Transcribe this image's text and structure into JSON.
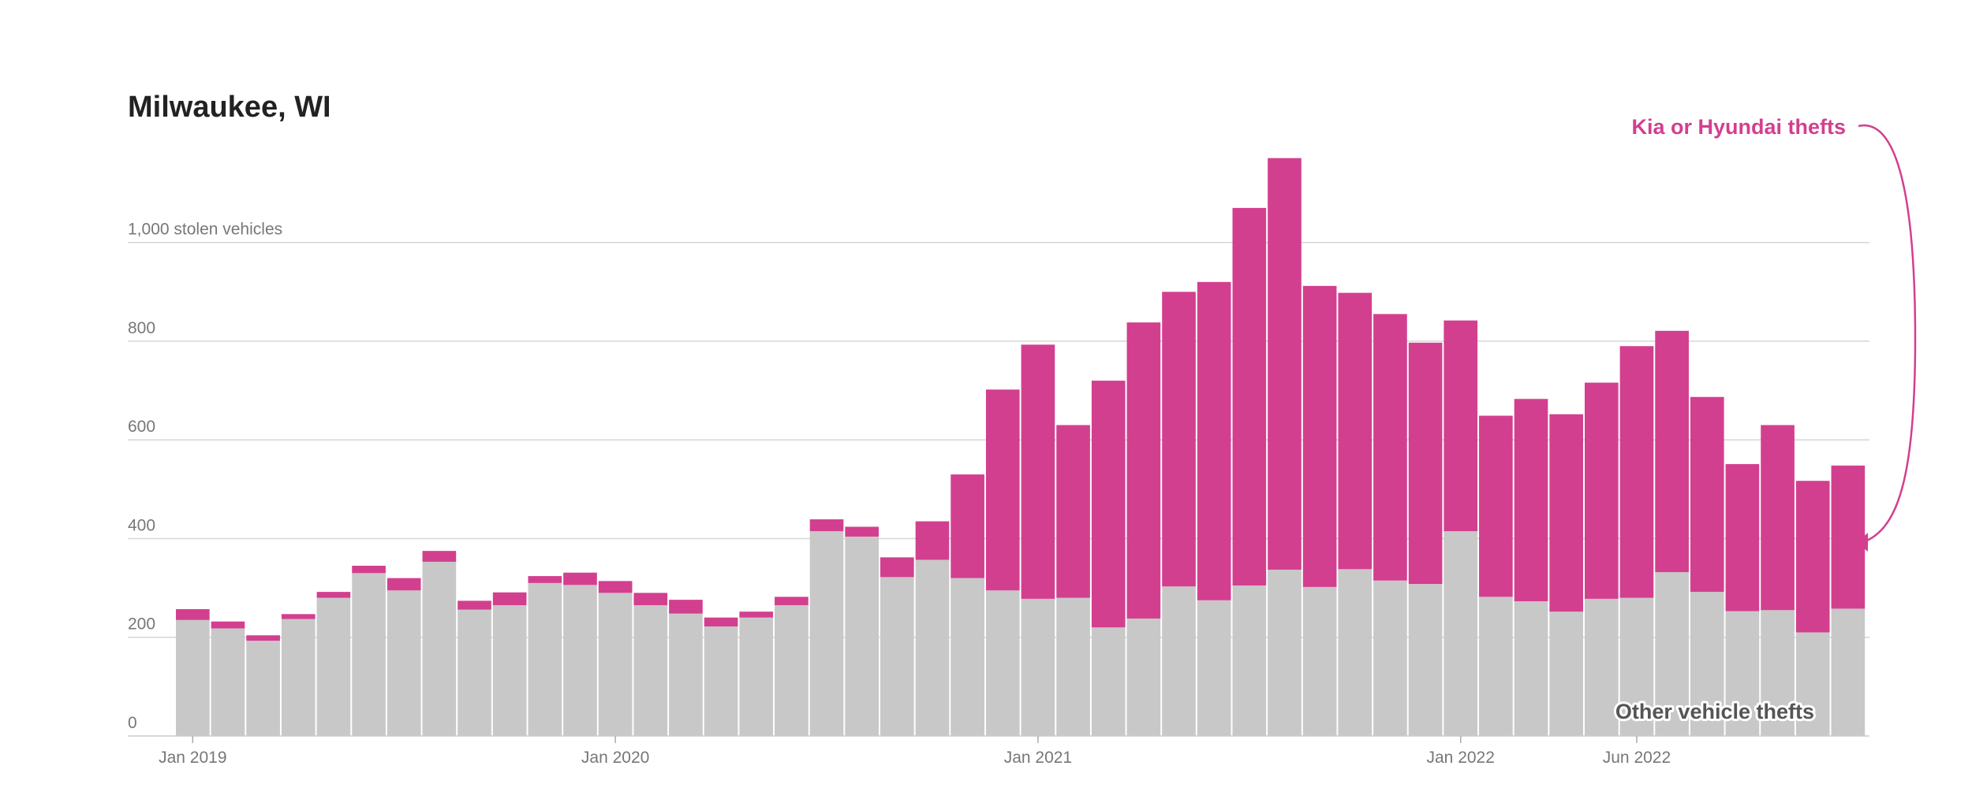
{
  "chart_data": {
    "type": "bar",
    "stacked": true,
    "title": "Milwaukee, WI",
    "ylabel": "stolen vehicles",
    "ylim": [
      0,
      1200
    ],
    "yticks": [
      {
        "value": 0,
        "label": "0"
      },
      {
        "value": 200,
        "label": "200"
      },
      {
        "value": 400,
        "label": "400"
      },
      {
        "value": 600,
        "label": "600"
      },
      {
        "value": 800,
        "label": "800"
      },
      {
        "value": 1000,
        "label": "1,000 stolen vehicles"
      }
    ],
    "xticks": [
      {
        "index": 0,
        "label": "Jan 2019"
      },
      {
        "index": 12,
        "label": "Jan 2020"
      },
      {
        "index": 24,
        "label": "Jan 2021"
      },
      {
        "index": 36,
        "label": "Jan 2022"
      },
      {
        "index": 41,
        "label": "Jun 2022"
      }
    ],
    "categories": [
      "2019-01",
      "2019-02",
      "2019-03",
      "2019-04",
      "2019-05",
      "2019-06",
      "2019-07",
      "2019-08",
      "2019-09",
      "2019-10",
      "2019-11",
      "2019-12",
      "2020-01",
      "2020-02",
      "2020-03",
      "2020-04",
      "2020-05",
      "2020-06",
      "2020-07",
      "2020-08",
      "2020-09",
      "2020-10",
      "2020-11",
      "2020-12",
      "2021-01",
      "2021-02",
      "2021-03",
      "2021-04",
      "2021-05",
      "2021-06",
      "2021-07",
      "2021-08",
      "2021-09",
      "2021-10",
      "2021-11",
      "2021-12",
      "2022-01",
      "2022-02",
      "2022-03",
      "2022-04",
      "2022-05",
      "2022-06",
      "2022-07",
      "2022-08",
      "2022-09",
      "2022-10",
      "2022-11",
      "2022-12"
    ],
    "series": [
      {
        "name": "Other vehicle thefts",
        "color": "#c8c8c8",
        "values": [
          235,
          218,
          193,
          237,
          280,
          330,
          295,
          353,
          256,
          265,
          310,
          306,
          290,
          265,
          248,
          222,
          240,
          265,
          415,
          404,
          322,
          357,
          320,
          295,
          278,
          280,
          220,
          238,
          303,
          275,
          305,
          337,
          302,
          338,
          315,
          308,
          415,
          282,
          273,
          252,
          278,
          280,
          332,
          292,
          253,
          255,
          210,
          258
        ]
      },
      {
        "name": "Kia or Hyundai thefts",
        "color": "#d33f8f",
        "values": [
          22,
          14,
          11,
          10,
          12,
          15,
          25,
          22,
          18,
          26,
          14,
          25,
          24,
          25,
          28,
          18,
          12,
          17,
          24,
          20,
          40,
          78,
          210,
          407,
          515,
          350,
          500,
          600,
          597,
          645,
          765,
          834,
          610,
          560,
          540,
          489,
          427,
          367,
          410,
          400,
          438,
          510,
          489,
          395,
          298,
          375,
          307,
          290
        ]
      }
    ]
  }
}
